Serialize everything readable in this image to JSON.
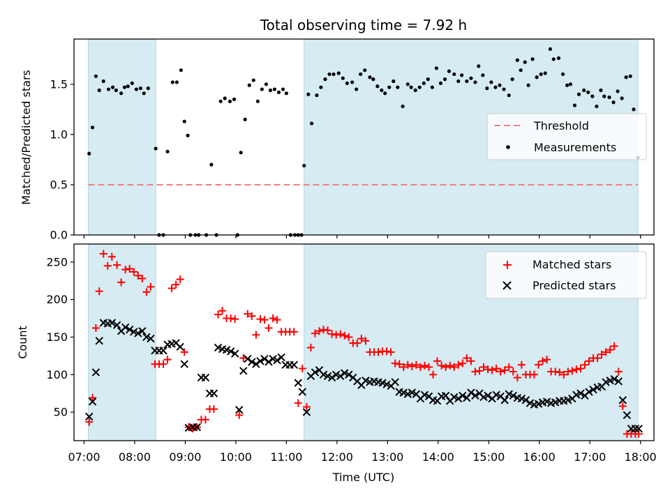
{
  "chart_data": [
    {
      "type": "scatter",
      "title": "Total observing time = 7.92 h",
      "xlabel": "",
      "ylabel": "Matched/Predicted stars",
      "xlim": [
        "06:48",
        "18:16"
      ],
      "ylim": [
        0,
        1.95
      ],
      "yticks": [
        0.0,
        0.5,
        1.0,
        1.5
      ],
      "ytick_labels": [
        "0.0",
        "0.5",
        "1.0",
        "1.5"
      ],
      "shaded_intervals": [
        [
          "07:05",
          "08:25"
        ],
        [
          "11:21",
          "17:57"
        ]
      ],
      "shade_color": "#add8e6",
      "threshold": {
        "name": "Threshold",
        "value": 0.5,
        "x_range": [
          "07:05",
          "17:57"
        ],
        "color": "#f08080"
      },
      "legend": {
        "position": "center-right",
        "entries": [
          "Threshold",
          "Measurements"
        ]
      },
      "series": [
        {
          "name": "Measurements",
          "color": "#000000",
          "marker": "dot",
          "x": [
            "07:06",
            "07:10",
            "07:14",
            "07:18",
            "07:23",
            "07:29",
            "07:34",
            "07:38",
            "07:44",
            "07:48",
            "07:52",
            "07:57",
            "08:02",
            "08:07",
            "08:11",
            "08:16",
            "08:25",
            "08:29",
            "08:34",
            "08:39",
            "08:45",
            "08:50",
            "08:55",
            "08:59",
            "09:03",
            "09:06",
            "09:12",
            "09:16",
            "09:25",
            "09:31",
            "09:37",
            "09:42",
            "09:47",
            "09:53",
            "09:58",
            "10:02",
            "10:06",
            "10:11",
            "10:16",
            "10:21",
            "10:26",
            "10:31",
            "10:36",
            "10:41",
            "10:46",
            "10:51",
            "10:56",
            "11:00",
            "11:05",
            "11:10",
            "11:14",
            "11:18",
            "11:21",
            "11:26",
            "11:30",
            "11:36",
            "11:41",
            "11:46",
            "11:51",
            "11:56",
            "12:02",
            "12:07",
            "12:12",
            "12:18",
            "12:23",
            "12:28",
            "12:33",
            "12:39",
            "12:43",
            "12:48",
            "12:53",
            "12:57",
            "13:02",
            "13:07",
            "13:12",
            "13:18",
            "13:24",
            "13:28",
            "13:33",
            "13:38",
            "13:43",
            "13:48",
            "13:53",
            "13:58",
            "14:03",
            "14:08",
            "14:13",
            "14:19",
            "14:24",
            "14:28",
            "14:34",
            "14:39",
            "14:44",
            "14:48",
            "14:53",
            "14:58",
            "15:03",
            "15:08",
            "15:13",
            "15:18",
            "15:24",
            "15:28",
            "15:34",
            "15:38",
            "15:43",
            "15:47",
            "15:52",
            "15:57",
            "16:02",
            "16:07",
            "16:13",
            "16:17",
            "16:23",
            "16:28",
            "16:33",
            "16:37",
            "16:42",
            "16:47",
            "16:53",
            "16:58",
            "17:03",
            "17:08",
            "17:13",
            "17:17",
            "17:23",
            "17:28",
            "17:33",
            "17:38",
            "17:43",
            "17:48",
            "17:52",
            "17:57"
          ],
          "y": [
            0.81,
            1.07,
            1.58,
            1.44,
            1.53,
            1.45,
            1.47,
            1.44,
            1.41,
            1.47,
            1.48,
            1.51,
            1.45,
            1.46,
            1.41,
            1.46,
            0.86,
            0,
            0,
            0.83,
            1.52,
            1.52,
            1.64,
            1.13,
            0.99,
            0,
            0,
            0,
            0,
            0.7,
            0,
            1.33,
            1.36,
            1.33,
            1.35,
            0,
            0.82,
            1.15,
            1.49,
            1.54,
            1.33,
            1.45,
            1.5,
            1.44,
            1.45,
            1.42,
            1.45,
            1.41,
            0,
            0,
            0,
            0,
            0.69,
            1.4,
            1.11,
            1.39,
            1.47,
            1.55,
            1.6,
            1.6,
            1.61,
            1.56,
            1.51,
            1.52,
            1.45,
            1.6,
            1.64,
            1.57,
            1.55,
            1.48,
            1.44,
            1.41,
            1.47,
            1.53,
            1.47,
            1.28,
            1.5,
            1.47,
            1.44,
            1.47,
            1.51,
            1.55,
            1.47,
            1.66,
            1.51,
            1.55,
            1.63,
            1.6,
            1.53,
            1.59,
            1.53,
            1.56,
            1.52,
            1.68,
            1.59,
            1.46,
            1.52,
            1.47,
            1.49,
            1.45,
            1.39,
            1.55,
            1.74,
            1.64,
            1.72,
            1.49,
            1.75,
            1.57,
            1.6,
            1.61,
            1.85,
            1.75,
            1.76,
            1.6,
            1.49,
            1.5,
            1.29,
            1.4,
            1.44,
            1.42,
            1.38,
            1.28,
            1.44,
            1.38,
            1.37,
            1.32,
            1.43,
            1.36,
            1.57,
            1.58,
            1.25,
            0.77
          ]
        }
      ]
    },
    {
      "type": "scatter",
      "title": "",
      "xlabel": "Time (UTC)",
      "ylabel": "Count",
      "xlim": [
        "06:48",
        "18:16"
      ],
      "ylim": [
        12,
        274
      ],
      "yticks": [
        50,
        100,
        150,
        200,
        250
      ],
      "ytick_labels": [
        "50",
        "100",
        "150",
        "200",
        "250"
      ],
      "xticks": [
        "07:00",
        "08:00",
        "09:00",
        "10:00",
        "11:00",
        "12:00",
        "13:00",
        "14:00",
        "15:00",
        "16:00",
        "17:00",
        "18:00"
      ],
      "shaded_intervals": [
        [
          "07:05",
          "08:25"
        ],
        [
          "11:21",
          "17:57"
        ]
      ],
      "shade_color": "#add8e6",
      "legend": {
        "position": "upper-right",
        "entries": [
          "Matched stars",
          "Predicted stars"
        ]
      },
      "series": [
        {
          "name": "Matched stars",
          "color": "#ff0000",
          "marker": "plus",
          "x": [
            "07:06",
            "07:10",
            "07:14",
            "07:18",
            "07:23",
            "07:28",
            "07:33",
            "07:39",
            "07:44",
            "07:49",
            "07:54",
            "07:59",
            "08:04",
            "08:09",
            "08:14",
            "08:19",
            "08:24",
            "08:29",
            "08:34",
            "08:39",
            "08:44",
            "08:49",
            "08:54",
            "08:59",
            "09:04",
            "09:09",
            "09:14",
            "09:19",
            "09:24",
            "09:29",
            "09:34",
            "09:39",
            "09:44",
            "09:49",
            "09:54",
            "09:59",
            "10:04",
            "10:09",
            "10:14",
            "10:19",
            "10:24",
            "10:29",
            "10:34",
            "10:39",
            "10:44",
            "10:49",
            "10:54",
            "10:59",
            "11:04",
            "11:09",
            "11:14",
            "11:19",
            "11:24",
            "11:29",
            "11:34",
            "11:39",
            "11:44",
            "11:49",
            "11:54",
            "11:59",
            "12:04",
            "12:09",
            "12:14",
            "12:19",
            "12:24",
            "12:29",
            "12:34",
            "12:39",
            "12:44",
            "12:49",
            "12:54",
            "12:59",
            "13:04",
            "13:09",
            "13:14",
            "13:19",
            "13:24",
            "13:29",
            "13:34",
            "13:39",
            "13:44",
            "13:49",
            "13:54",
            "13:59",
            "14:04",
            "14:09",
            "14:14",
            "14:19",
            "14:24",
            "14:29",
            "14:34",
            "14:39",
            "14:44",
            "14:49",
            "14:54",
            "14:59",
            "15:04",
            "15:09",
            "15:14",
            "15:19",
            "15:24",
            "15:29",
            "15:34",
            "15:39",
            "15:44",
            "15:49",
            "15:54",
            "15:59",
            "16:04",
            "16:09",
            "16:14",
            "16:19",
            "16:24",
            "16:29",
            "16:34",
            "16:39",
            "16:44",
            "16:49",
            "16:54",
            "16:59",
            "17:04",
            "17:09",
            "17:14",
            "17:19",
            "17:24",
            "17:29",
            "17:34",
            "17:39",
            "17:44",
            "17:49",
            "17:54",
            "17:58"
          ],
          "y": [
            37,
            69,
            162,
            211,
            261,
            245,
            257,
            246,
            223,
            240,
            241,
            237,
            232,
            228,
            210,
            217,
            114,
            114,
            114,
            120,
            215,
            220,
            227,
            130,
            30,
            28,
            30,
            40,
            40,
            54,
            54,
            180,
            185,
            175,
            175,
            174,
            46,
            122,
            181,
            178,
            153,
            174,
            173,
            162,
            175,
            173,
            157,
            157,
            157,
            157,
            62,
            108,
            57,
            136,
            155,
            158,
            160,
            159,
            154,
            153,
            154,
            152,
            150,
            142,
            142,
            148,
            145,
            130,
            130,
            130,
            131,
            131,
            130,
            115,
            114,
            110,
            113,
            111,
            113,
            110,
            112,
            110,
            100,
            118,
            112,
            110,
            112,
            110,
            113,
            115,
            122,
            118,
            104,
            105,
            110,
            107,
            106,
            108,
            104,
            106,
            110,
            104,
            96,
            113,
            100,
            100,
            100,
            113,
            118,
            120,
            104,
            104,
            103,
            100,
            104,
            105,
            107,
            108,
            113,
            118,
            122,
            122,
            127,
            130,
            133,
            138,
            104,
            58,
            21,
            21,
            21,
            21
          ]
        },
        {
          "name": "Predicted stars",
          "color": "#000000",
          "marker": "x",
          "x": [
            "07:06",
            "07:10",
            "07:14",
            "07:18",
            "07:23",
            "07:28",
            "07:33",
            "07:39",
            "07:44",
            "07:49",
            "07:54",
            "07:59",
            "08:04",
            "08:09",
            "08:14",
            "08:19",
            "08:24",
            "08:29",
            "08:34",
            "08:39",
            "08:44",
            "08:49",
            "08:54",
            "08:59",
            "09:04",
            "09:09",
            "09:14",
            "09:19",
            "09:24",
            "09:29",
            "09:34",
            "09:39",
            "09:44",
            "09:49",
            "09:54",
            "09:59",
            "10:04",
            "10:09",
            "10:14",
            "10:19",
            "10:24",
            "10:29",
            "10:34",
            "10:39",
            "10:44",
            "10:49",
            "10:54",
            "10:59",
            "11:04",
            "11:09",
            "11:14",
            "11:19",
            "11:24",
            "11:29",
            "11:34",
            "11:39",
            "11:44",
            "11:49",
            "11:54",
            "11:59",
            "12:04",
            "12:09",
            "12:14",
            "12:19",
            "12:24",
            "12:29",
            "12:34",
            "12:39",
            "12:44",
            "12:49",
            "12:54",
            "12:59",
            "13:04",
            "13:09",
            "13:14",
            "13:19",
            "13:24",
            "13:29",
            "13:34",
            "13:39",
            "13:44",
            "13:49",
            "13:54",
            "13:59",
            "14:04",
            "14:09",
            "14:14",
            "14:19",
            "14:24",
            "14:29",
            "14:34",
            "14:39",
            "14:44",
            "14:49",
            "14:54",
            "14:59",
            "15:04",
            "15:09",
            "15:14",
            "15:19",
            "15:24",
            "15:29",
            "15:34",
            "15:39",
            "15:44",
            "15:49",
            "15:54",
            "15:59",
            "16:04",
            "16:09",
            "16:14",
            "16:19",
            "16:24",
            "16:29",
            "16:34",
            "16:39",
            "16:44",
            "16:49",
            "16:54",
            "16:59",
            "17:04",
            "17:09",
            "17:14",
            "17:19",
            "17:24",
            "17:29",
            "17:34",
            "17:39",
            "17:44",
            "17:49",
            "17:54",
            "17:58"
          ],
          "y": [
            44,
            64,
            103,
            145,
            169,
            168,
            169,
            166,
            158,
            163,
            160,
            157,
            155,
            158,
            150,
            148,
            132,
            132,
            132,
            140,
            141,
            142,
            137,
            114,
            29,
            30,
            30,
            96,
            96,
            75,
            75,
            136,
            134,
            133,
            131,
            128,
            53,
            105,
            121,
            117,
            114,
            118,
            121,
            117,
            121,
            119,
            123,
            113,
            113,
            113,
            89,
            77,
            50,
            98,
            103,
            106,
            100,
            98,
            96,
            100,
            98,
            102,
            100,
            96,
            91,
            86,
            92,
            90,
            91,
            90,
            89,
            87,
            85,
            90,
            77,
            76,
            74,
            76,
            74,
            68,
            73,
            71,
            66,
            65,
            71,
            72,
            65,
            70,
            68,
            72,
            69,
            76,
            72,
            75,
            70,
            72,
            68,
            73,
            71,
            66,
            74,
            72,
            69,
            68,
            66,
            62,
            60,
            61,
            63,
            64,
            62,
            63,
            65,
            65,
            66,
            68,
            73,
            75,
            72,
            77,
            80,
            83,
            84,
            90,
            92,
            94,
            91,
            66,
            46,
            28,
            28,
            28
          ]
        }
      ]
    }
  ]
}
